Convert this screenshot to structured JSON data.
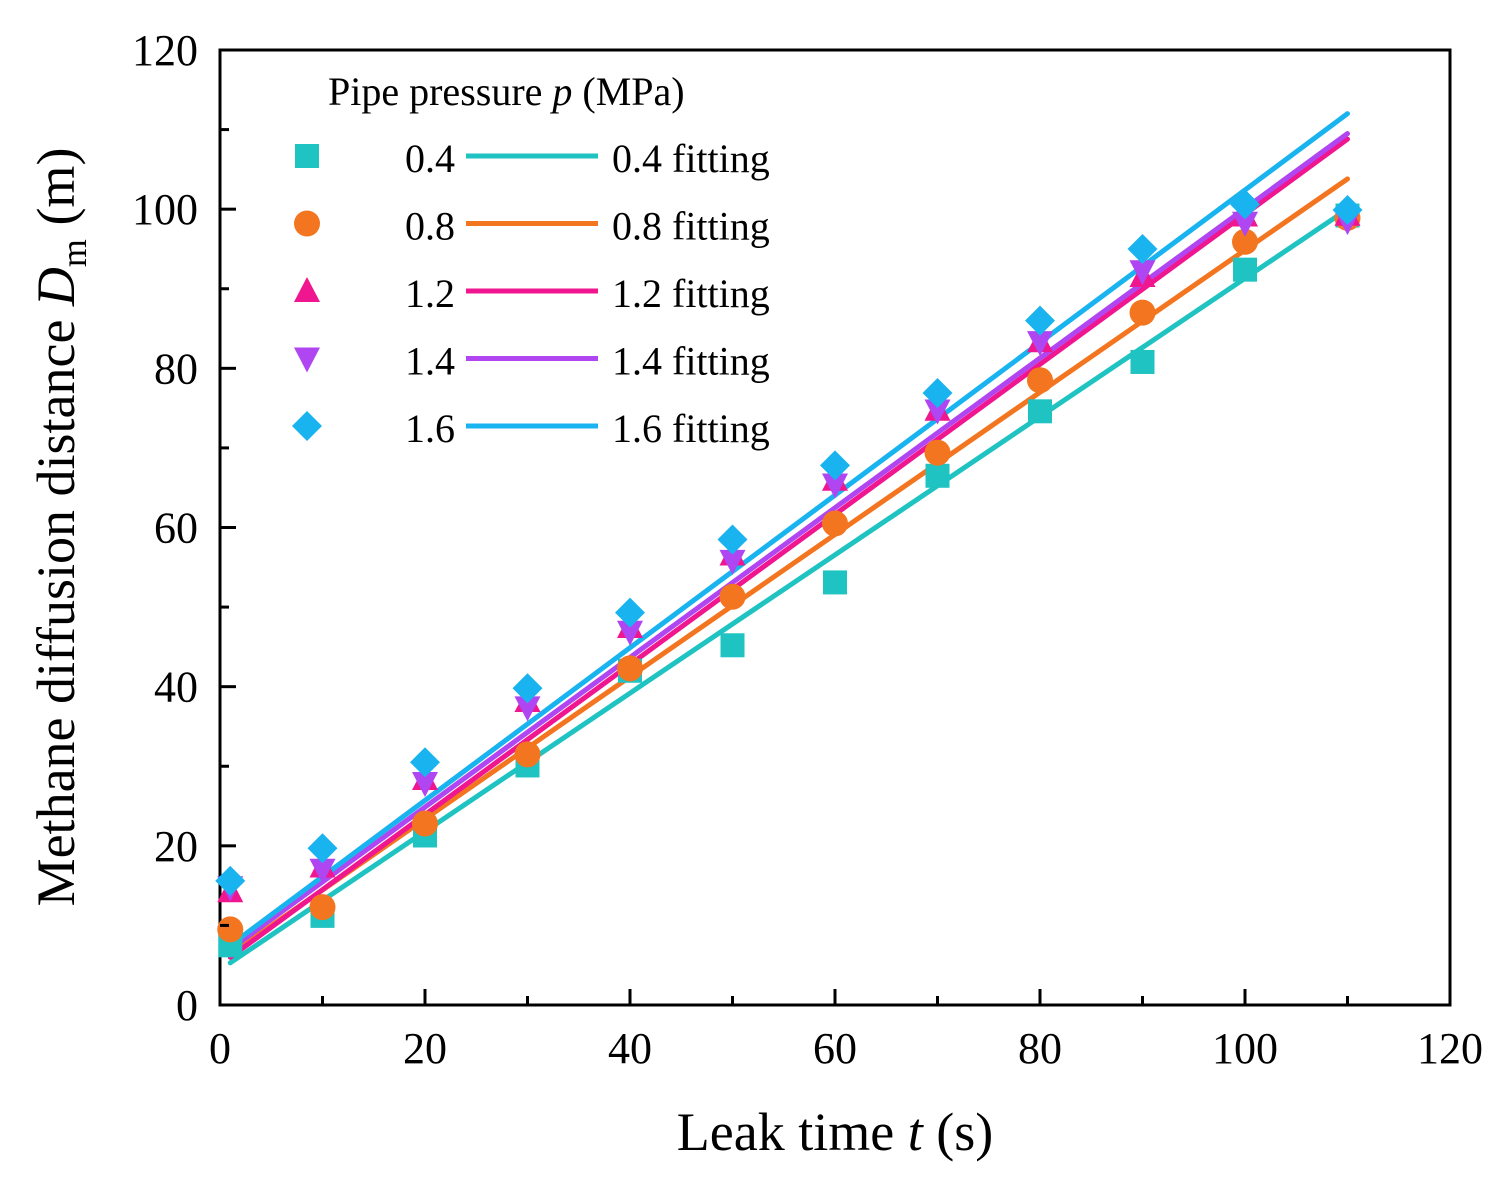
{
  "chart_data": {
    "type": "scatter",
    "x_axis": {
      "label_prefix": "Leak time ",
      "label_var": "t",
      "label_suffix": " (s)",
      "range": [
        0,
        120
      ],
      "ticks": [
        0,
        20,
        40,
        60,
        80,
        100,
        120
      ]
    },
    "y_axis": {
      "label_prefix": "Methane diffusion distance ",
      "label_var": "D",
      "label_sub": "m",
      "label_suffix": " (m)",
      "range": [
        0,
        120
      ],
      "ticks": [
        0,
        20,
        40,
        60,
        80,
        100,
        120
      ]
    },
    "grid": false,
    "legend": {
      "placement": "top-left",
      "title_prefix": "Pipe pressure ",
      "title_var": "p",
      "title_suffix": " (MPa)"
    },
    "x": [
      1,
      10,
      20,
      30,
      40,
      50,
      60,
      70,
      80,
      90,
      100,
      110
    ],
    "series": [
      {
        "name": "0.4",
        "fit_name": "0.4 fitting",
        "color": "#1fc3c1",
        "marker": "square",
        "values": [
          7.5,
          11.2,
          21.3,
          30.1,
          42.0,
          45.2,
          53.1,
          66.5,
          74.6,
          80.8,
          92.4,
          99.2
        ],
        "fit": {
          "x": [
            1,
            110
          ],
          "y": [
            5.3,
            100.0
          ]
        }
      },
      {
        "name": "0.8",
        "fit_name": "0.8 fitting",
        "color": "#f4751f",
        "marker": "circle",
        "values": [
          9.5,
          12.3,
          22.8,
          31.5,
          42.3,
          51.3,
          60.5,
          69.4,
          78.5,
          87.0,
          95.9,
          98.9
        ],
        "fit": {
          "x": [
            1,
            110
          ],
          "y": [
            6.4,
            103.8
          ]
        }
      },
      {
        "name": "1.2",
        "fit_name": "1.2 fitting",
        "color": "#f0168f",
        "marker": "triangle-up",
        "values": [
          14.3,
          17.4,
          28.4,
          38.2,
          47.5,
          56.6,
          66.0,
          74.8,
          83.4,
          91.6,
          99.2,
          99.3
        ],
        "fit": {
          "x": [
            1,
            110
          ],
          "y": [
            6.0,
            108.8
          ]
        }
      },
      {
        "name": "1.4",
        "fit_name": "1.4 fitting",
        "color": "#b045f2",
        "marker": "triangle-down",
        "values": [
          14.8,
          17.0,
          27.9,
          37.4,
          46.9,
          55.8,
          65.4,
          74.7,
          83.3,
          92.2,
          98.3,
          98.5
        ],
        "fit": {
          "x": [
            1,
            110
          ],
          "y": [
            7.0,
            109.5
          ]
        }
      },
      {
        "name": "1.6",
        "fit_name": "1.6 fitting",
        "color": "#19b4f0",
        "marker": "diamond",
        "values": [
          15.6,
          19.7,
          30.5,
          39.8,
          49.3,
          58.5,
          67.8,
          76.9,
          86.0,
          95.0,
          100.6,
          99.9
        ],
        "fit": {
          "x": [
            1,
            110
          ],
          "y": [
            7.5,
            112.0
          ]
        }
      }
    ]
  }
}
